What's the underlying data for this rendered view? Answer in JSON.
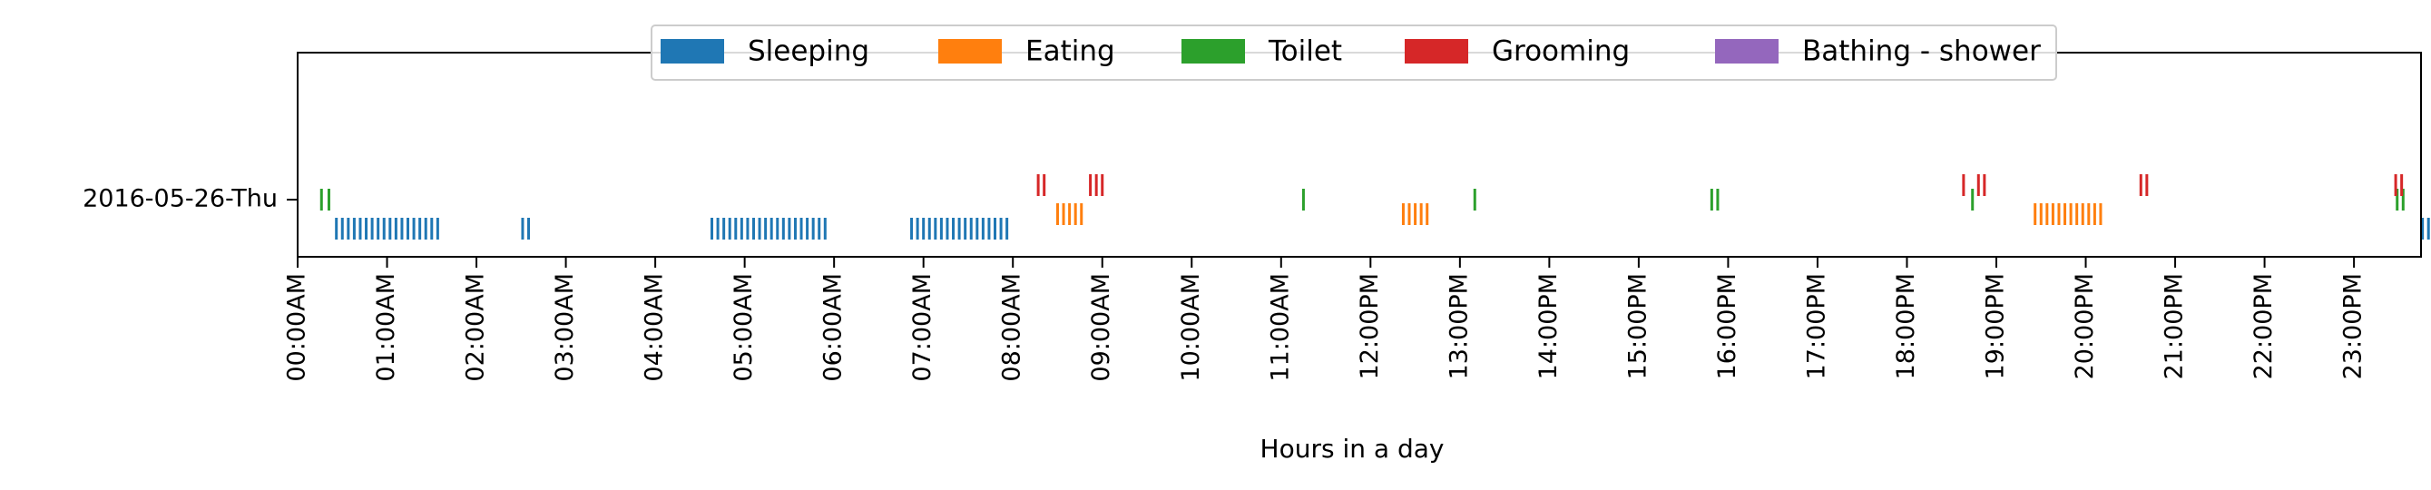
{
  "chart_data": {
    "type": "scatter",
    "title": "",
    "xlabel": "Hours in a day",
    "ylabel": "",
    "xlim": [
      0,
      1425
    ],
    "grid": false,
    "legend_placement": "top-center",
    "x_ticks": [
      "00:00AM",
      "01:00AM",
      "02:00AM",
      "03:00AM",
      "04:00AM",
      "05:00AM",
      "06:00AM",
      "07:00AM",
      "08:00AM",
      "09:00AM",
      "10:00AM",
      "11:00AM",
      "12:00PM",
      "13:00PM",
      "14:00PM",
      "15:00PM",
      "16:00PM",
      "17:00PM",
      "18:00PM",
      "19:00PM",
      "20:00PM",
      "21:00PM",
      "22:00PM",
      "23:00PM"
    ],
    "y_categories": [
      "2016-05-26-Thu"
    ],
    "series": [
      {
        "name": "Sleeping",
        "color": "#1f77b4",
        "offset": -1,
        "x": [
          "00:26",
          "00:30",
          "00:34",
          "00:38",
          "00:42",
          "00:46",
          "00:50",
          "00:54",
          "00:58",
          "01:02",
          "01:06",
          "01:10",
          "01:14",
          "01:18",
          "01:22",
          "01:26",
          "01:30",
          "01:34",
          "02:31",
          "02:35",
          "04:38",
          "04:42",
          "04:46",
          "04:50",
          "04:54",
          "04:58",
          "05:02",
          "05:06",
          "05:10",
          "05:14",
          "05:18",
          "05:22",
          "05:26",
          "05:30",
          "05:34",
          "05:38",
          "05:42",
          "05:46",
          "05:50",
          "05:54",
          "06:52",
          "06:56",
          "07:00",
          "07:04",
          "07:08",
          "07:12",
          "07:16",
          "07:20",
          "07:24",
          "07:28",
          "07:32",
          "07:36",
          "07:40",
          "07:44",
          "07:48",
          "07:52",
          "07:56",
          "23:46",
          "23:50",
          "23:54",
          "23:58"
        ]
      },
      {
        "name": "Eating",
        "color": "#ff7f0e",
        "offset": -0.5,
        "x": [
          "08:30",
          "08:34",
          "08:38",
          "08:42",
          "08:46",
          "12:22",
          "12:26",
          "12:30",
          "12:34",
          "12:38",
          "19:26",
          "19:30",
          "19:34",
          "19:38",
          "19:42",
          "19:46",
          "19:50",
          "19:54",
          "19:58",
          "20:02",
          "20:06",
          "20:10"
        ]
      },
      {
        "name": "Toilet",
        "color": "#2ca02c",
        "offset": 0,
        "x": [
          "00:16",
          "00:21",
          "11:15",
          "13:10",
          "15:49",
          "15:53",
          "18:44",
          "23:29",
          "23:33"
        ]
      },
      {
        "name": "Grooming",
        "color": "#d62728",
        "offset": 0.5,
        "x": [
          "08:17",
          "08:21",
          "08:52",
          "08:56",
          "09:00",
          "18:38",
          "18:48",
          "18:52",
          "20:37",
          "20:41",
          "23:28",
          "23:32"
        ]
      },
      {
        "name": "Bathing - shower",
        "color": "#9467bd",
        "offset": 0,
        "x": []
      }
    ]
  }
}
